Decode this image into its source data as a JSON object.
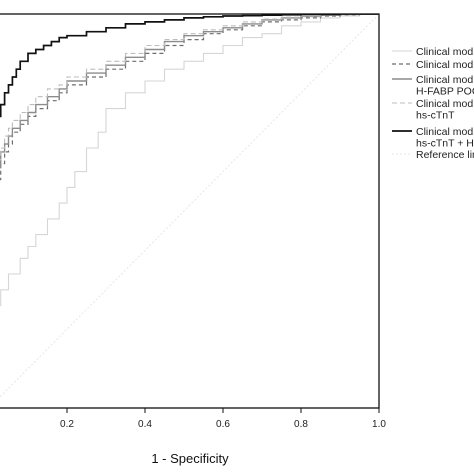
{
  "chart_data": {
    "type": "line",
    "title": "",
    "xlabel": "1 - Specificity",
    "ylabel": "",
    "xlim": [
      0.0,
      1.0
    ],
    "ylim": [
      0.0,
      1.0
    ],
    "x_ticks": [
      "0.2",
      "0.4",
      "0.6",
      "0.8",
      "1.0"
    ],
    "grid": false,
    "legend_position": "right",
    "series": [
      {
        "name": "Clinical model",
        "legend_lines": [
          "Clinical mod"
        ],
        "color": "#d6d6d6",
        "dash": "solid",
        "width": 1.1,
        "x": [
          0,
          0.01,
          0.03,
          0.05,
          0.08,
          0.1,
          0.12,
          0.15,
          0.18,
          0.2,
          0.22,
          0.25,
          0.28,
          0.3,
          0.35,
          0.4,
          0.45,
          0.5,
          0.55,
          0.6,
          0.65,
          0.7,
          0.75,
          0.8,
          0.85,
          0.9,
          0.95,
          1.0
        ],
        "y": [
          0,
          0.18,
          0.26,
          0.3,
          0.34,
          0.38,
          0.41,
          0.44,
          0.48,
          0.52,
          0.56,
          0.6,
          0.66,
          0.7,
          0.76,
          0.8,
          0.83,
          0.86,
          0.88,
          0.9,
          0.92,
          0.94,
          0.95,
          0.97,
          0.98,
          0.99,
          0.995,
          1.0
        ]
      },
      {
        "name": "Clinical model + hs-cTnT",
        "legend_lines": [
          "Clinical mod"
        ],
        "color": "#6e6e6e",
        "dash": "4,3",
        "width": 1.2,
        "x": [
          0,
          0.005,
          0.01,
          0.02,
          0.03,
          0.04,
          0.05,
          0.06,
          0.08,
          0.1,
          0.12,
          0.15,
          0.18,
          0.2,
          0.25,
          0.3,
          0.35,
          0.4,
          0.45,
          0.5,
          0.55,
          0.6,
          0.65,
          0.7,
          0.75,
          0.8,
          0.85,
          0.9,
          0.95,
          1.0
        ],
        "y": [
          0,
          0.4,
          0.47,
          0.53,
          0.58,
          0.62,
          0.65,
          0.67,
          0.7,
          0.72,
          0.74,
          0.76,
          0.78,
          0.8,
          0.82,
          0.84,
          0.86,
          0.88,
          0.9,
          0.92,
          0.935,
          0.95,
          0.96,
          0.97,
          0.98,
          0.985,
          0.99,
          0.995,
          0.998,
          1.0
        ]
      },
      {
        "name": "Clinical model + H-FABP POC",
        "legend_lines": [
          "Clinical mod",
          "H-FABP POC"
        ],
        "color": "#8c8c8c",
        "dash": "solid",
        "width": 1.4,
        "x": [
          0,
          0.005,
          0.01,
          0.02,
          0.03,
          0.04,
          0.05,
          0.06,
          0.08,
          0.1,
          0.12,
          0.15,
          0.18,
          0.2,
          0.25,
          0.3,
          0.35,
          0.4,
          0.45,
          0.5,
          0.55,
          0.6,
          0.65,
          0.7,
          0.75,
          0.8,
          0.85,
          0.9,
          0.95,
          1.0
        ],
        "y": [
          0,
          0.43,
          0.5,
          0.56,
          0.61,
          0.65,
          0.67,
          0.69,
          0.71,
          0.73,
          0.75,
          0.77,
          0.79,
          0.81,
          0.83,
          0.85,
          0.87,
          0.89,
          0.91,
          0.93,
          0.945,
          0.955,
          0.965,
          0.975,
          0.985,
          0.99,
          0.994,
          0.997,
          0.999,
          1.0
        ]
      },
      {
        "name": "Clinical model + hs-cTnT",
        "legend_lines": [
          "Clinical mod",
          "hs-cTnT"
        ],
        "color": "#bdbdbd",
        "dash": "5,3",
        "width": 1.1,
        "x": [
          0,
          0.005,
          0.01,
          0.02,
          0.03,
          0.04,
          0.05,
          0.06,
          0.08,
          0.1,
          0.12,
          0.15,
          0.18,
          0.2,
          0.25,
          0.3,
          0.35,
          0.4,
          0.45,
          0.5,
          0.55,
          0.6,
          0.65,
          0.7,
          0.75,
          0.8,
          0.85,
          0.9,
          0.95,
          1.0
        ],
        "y": [
          0,
          0.45,
          0.52,
          0.58,
          0.63,
          0.66,
          0.69,
          0.71,
          0.73,
          0.75,
          0.77,
          0.79,
          0.81,
          0.82,
          0.84,
          0.86,
          0.88,
          0.9,
          0.92,
          0.935,
          0.95,
          0.96,
          0.97,
          0.98,
          0.987,
          0.992,
          0.995,
          0.998,
          0.999,
          1.0
        ]
      },
      {
        "name": "Clinical model + hs-cTnT + H-FABP",
        "legend_lines": [
          "Clinical mod",
          "hs-cTnT + H-"
        ],
        "color": "#111111",
        "dash": "solid",
        "width": 1.7,
        "x": [
          0,
          0.005,
          0.01,
          0.02,
          0.03,
          0.04,
          0.05,
          0.06,
          0.07,
          0.08,
          0.1,
          0.12,
          0.14,
          0.16,
          0.18,
          0.2,
          0.25,
          0.3,
          0.35,
          0.4,
          0.45,
          0.5,
          0.55,
          0.6,
          0.65,
          0.7,
          0.75,
          0.8,
          0.85,
          0.9,
          0.92,
          1.0
        ],
        "y": [
          0,
          0.62,
          0.66,
          0.7,
          0.74,
          0.77,
          0.8,
          0.82,
          0.84,
          0.86,
          0.88,
          0.9,
          0.91,
          0.92,
          0.93,
          0.94,
          0.945,
          0.955,
          0.965,
          0.975,
          0.98,
          0.985,
          0.99,
          0.993,
          0.995,
          0.996,
          0.997,
          0.998,
          0.999,
          0.999,
          1.0,
          1.0
        ]
      },
      {
        "name": "Reference line",
        "legend_lines": [
          "Reference lin"
        ],
        "color": "#e6e6e6",
        "dash": "2,2",
        "width": 1.0,
        "x": [
          0,
          1
        ],
        "y": [
          0,
          1
        ]
      }
    ]
  }
}
